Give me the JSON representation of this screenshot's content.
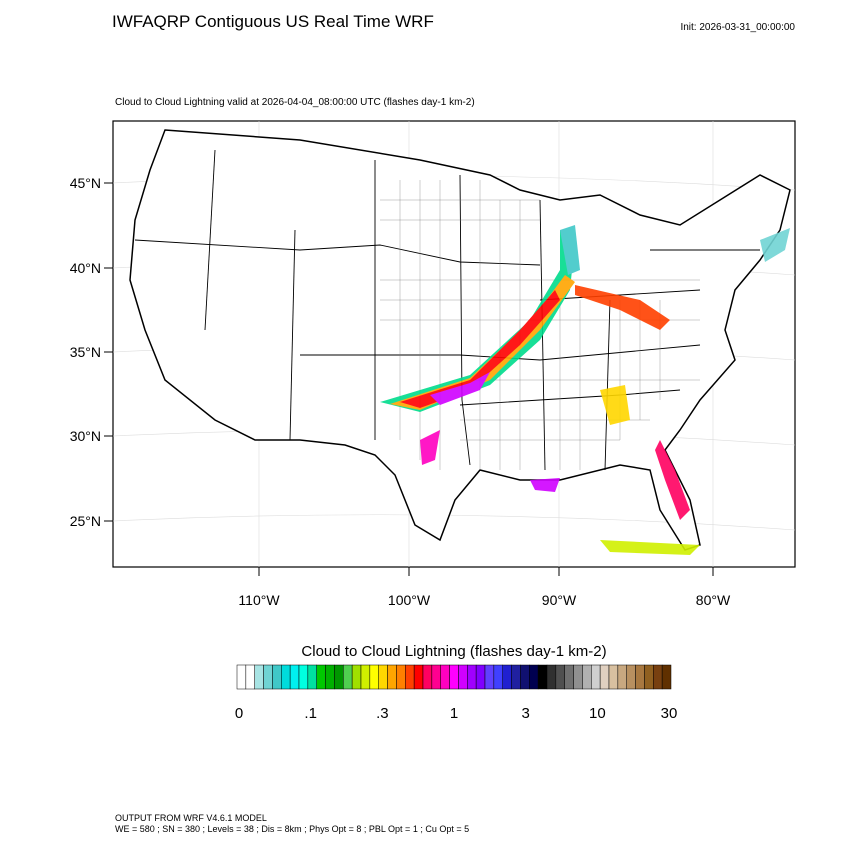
{
  "header": {
    "title": "IWFAQRP Contiguous US Real Time WRF",
    "init": "Init: 2026-03-31_00:00:00",
    "subtitle": "Cloud to Cloud Lightning valid at 2026-04-04_08:00:00 UTC   (flashes day-1 km-2)"
  },
  "map": {
    "lat_labels": [
      "45°N",
      "40°N",
      "35°N",
      "30°N",
      "25°N"
    ],
    "lon_labels": [
      "110°W",
      "100°W",
      "90°W",
      "80°W"
    ]
  },
  "colorbar": {
    "title": "Cloud to Cloud Lightning  (flashes day-1 km-2)",
    "labels": [
      "0",
      ".1",
      ".3",
      "1",
      "3",
      "10",
      "30"
    ],
    "colors": [
      "#ffffff",
      "#ffffff",
      "#a8e4e4",
      "#70d4d4",
      "#40c8c8",
      "#00dcdc",
      "#00f0f0",
      "#00ffe0",
      "#00e0a0",
      "#00c800",
      "#00b000",
      "#009600",
      "#50d050",
      "#a0e000",
      "#d0f000",
      "#ffff00",
      "#ffd700",
      "#ffa500",
      "#ff8000",
      "#ff4000",
      "#ff0000",
      "#ff0060",
      "#ff0090",
      "#ff00c0",
      "#ff00ff",
      "#d000ff",
      "#a000ff",
      "#8000ff",
      "#6040ff",
      "#4040ff",
      "#2020d0",
      "#2020a0",
      "#101070",
      "#000050",
      "#000000",
      "#303030",
      "#505050",
      "#707070",
      "#909090",
      "#b0b0b0",
      "#d0d0d0",
      "#e0d0c0",
      "#d8c0a0",
      "#c8a880",
      "#b89060",
      "#a87840",
      "#906020",
      "#784010",
      "#603000"
    ]
  },
  "footer": {
    "line1": "OUTPUT FROM WRF V4.6.1 MODEL",
    "line2": "WE = 580 ; SN = 380 ; Levels = 38 ; Dis = 8km ; Phys Opt = 8 ; PBL Opt = 1 ; Cu Opt = 5"
  }
}
